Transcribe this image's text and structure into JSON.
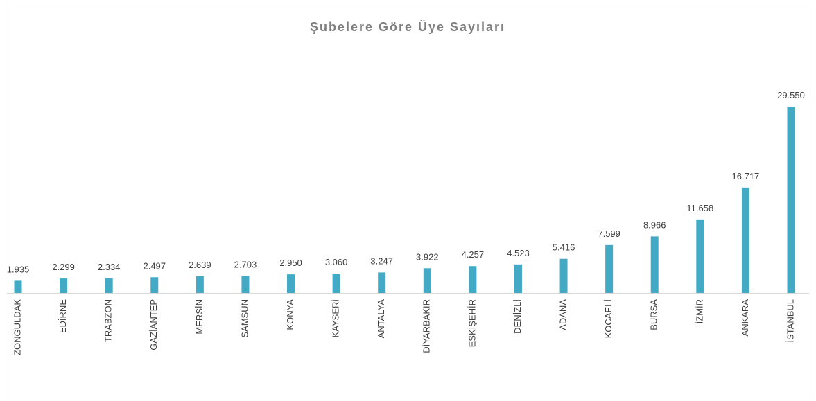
{
  "chart_data": {
    "type": "bar",
    "title": "Şubelere Göre Üye Sayıları",
    "categories": [
      "ZONGULDAK",
      "EDİRNE",
      "TRABZON",
      "GAZİANTEP",
      "MERSİN",
      "SAMSUN",
      "KONYA",
      "KAYSERİ",
      "ANTALYA",
      "DİYARBAKIR",
      "ESKİŞEHİR",
      "DENİZLİ",
      "ADANA",
      "KOCAELİ",
      "BURSA",
      "İZMİR",
      "ANKARA",
      "İSTANBUL"
    ],
    "values": [
      1935,
      2299,
      2334,
      2497,
      2639,
      2703,
      2950,
      3060,
      3247,
      3922,
      4257,
      4523,
      5416,
      7599,
      8966,
      11658,
      16717,
      29550
    ],
    "value_labels": [
      "1.935",
      "2.299",
      "2.334",
      "2.497",
      "2.639",
      "2.703",
      "2.950",
      "3.060",
      "3.247",
      "3.922",
      "4.257",
      "4.523",
      "5.416",
      "7.599",
      "8.966",
      "11.658",
      "16.717",
      "29.550"
    ],
    "color": "#43aac6"
  }
}
